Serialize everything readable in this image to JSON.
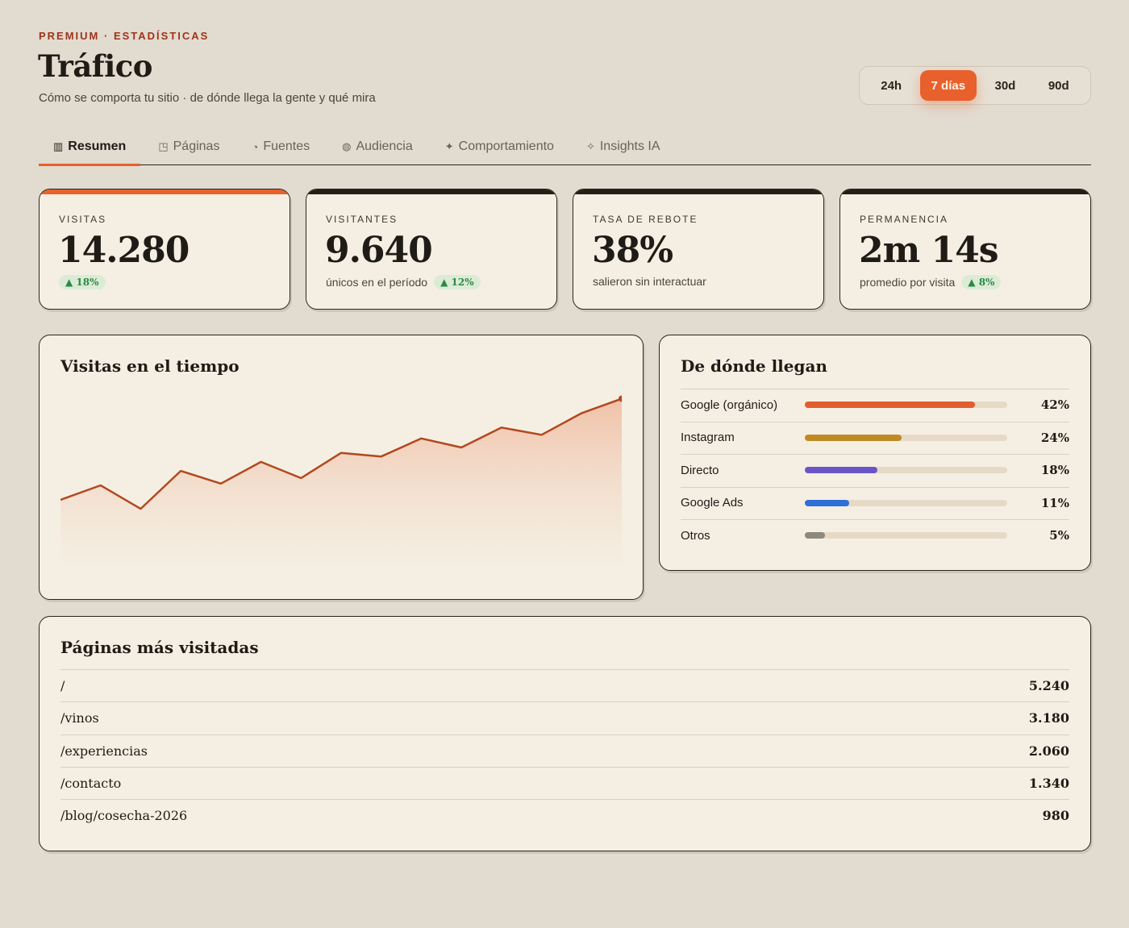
{
  "header": {
    "eyebrow": "PREMIUM · ESTADÍSTICAS",
    "title": "Tráfico",
    "subtitle": "Cómo se comporta tu sitio · de dónde llega la gente y qué mira"
  },
  "range": {
    "options": [
      "24h",
      "7 días",
      "30d",
      "90d"
    ],
    "selected": "7 días"
  },
  "tabs": [
    {
      "icon": "▥",
      "label": "Resumen",
      "active": true
    },
    {
      "icon": "◳",
      "label": "Páginas",
      "active": false
    },
    {
      "icon": "◔",
      "label": "Fuentes",
      "active": false
    },
    {
      "icon": "◍",
      "label": "Audiencia",
      "active": false
    },
    {
      "icon": "✦",
      "label": "Comportamiento",
      "active": false
    },
    {
      "icon": "✧",
      "label": "Insights IA",
      "active": false
    }
  ],
  "kpis": [
    {
      "label": "VISITAS",
      "value": "14.280",
      "note": "",
      "delta": "▲ 18%"
    },
    {
      "label": "VISITANTES",
      "value": "9.640",
      "note": "únicos en el período",
      "delta": "▲ 12%"
    },
    {
      "label": "TASA DE REBOTE",
      "value": "38%",
      "note": "salieron sin interactuar",
      "delta": ""
    },
    {
      "label": "PERMANENCIA",
      "value": "2m 14s",
      "note": "promedio por visita",
      "delta": "▲ 8%"
    }
  ],
  "chart_data": {
    "type": "area",
    "title": "Visitas en el tiempo",
    "values": [
      42,
      50,
      37,
      58,
      51,
      63,
      54,
      68,
      66,
      76,
      71,
      82,
      78,
      90,
      98
    ],
    "ylim": [
      0,
      100
    ],
    "grid": false,
    "color": "#b2481f"
  },
  "sources": {
    "title": "De dónde llegan",
    "items": [
      {
        "name": "Google (orgánico)",
        "pct": "42%",
        "fraction": 0.84,
        "color": "#e35d2c"
      },
      {
        "name": "Instagram",
        "pct": "24%",
        "fraction": 0.48,
        "color": "#bf8a24"
      },
      {
        "name": "Directo",
        "pct": "18%",
        "fraction": 0.36,
        "color": "#6a55c8"
      },
      {
        "name": "Google Ads",
        "pct": "11%",
        "fraction": 0.22,
        "color": "#2e6fd8"
      },
      {
        "name": "Otros",
        "pct": "5%",
        "fraction": 0.1,
        "color": "#8f887d"
      }
    ]
  },
  "pages": {
    "title": "Páginas más visitadas",
    "rows": [
      {
        "path": "/",
        "views": "5.240"
      },
      {
        "path": "/vinos",
        "views": "3.180"
      },
      {
        "path": "/experiencias",
        "views": "2.060"
      },
      {
        "path": "/contacto",
        "views": "1.340"
      },
      {
        "path": "/blog/cosecha-2026",
        "views": "980"
      }
    ]
  }
}
